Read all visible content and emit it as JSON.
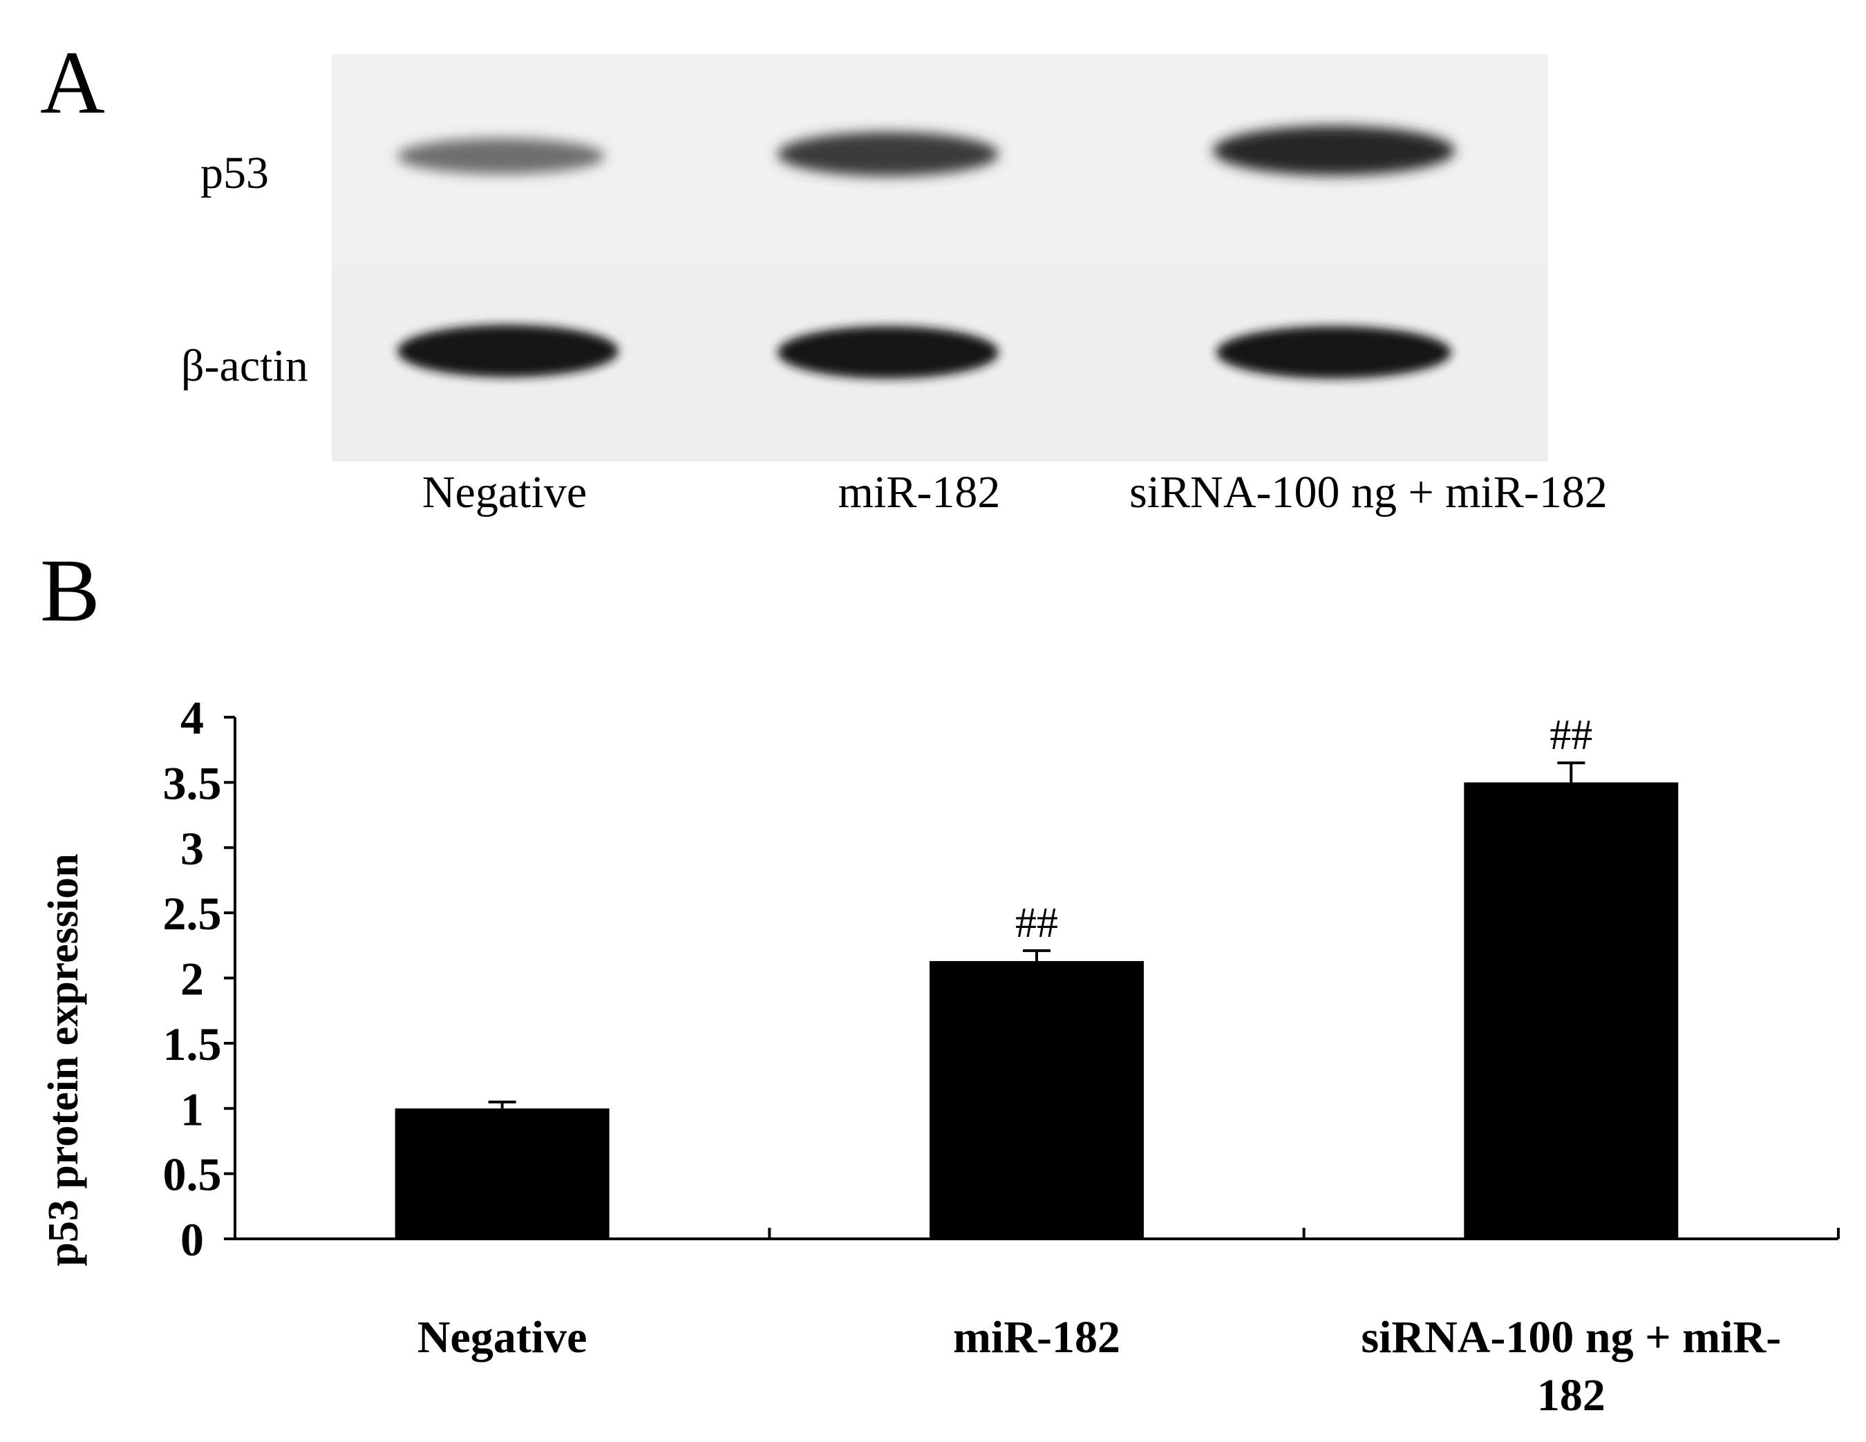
{
  "panel_a": {
    "letter": "A",
    "row_labels": [
      "p53",
      "β-actin"
    ],
    "lane_labels": [
      "Negative",
      "miR-182",
      "siRNA-100 ng + miR-182"
    ]
  },
  "panel_b": {
    "letter": "B"
  },
  "chart_data": {
    "type": "bar",
    "title": "",
    "xlabel": "",
    "ylabel": "p53 protein expression",
    "categories": [
      "Negative",
      "miR-182",
      "siRNA-100 ng + miR-182"
    ],
    "category_label_lines": [
      [
        "Negative"
      ],
      [
        "miR-182"
      ],
      [
        "siRNA-100 ng + miR-",
        "182"
      ]
    ],
    "values": [
      1.0,
      2.13,
      3.5
    ],
    "errors": [
      0.05,
      0.08,
      0.15
    ],
    "significance": [
      "",
      "##",
      "##"
    ],
    "yticks": [
      "0",
      "0.5",
      "1",
      "1.5",
      "2",
      "2.5",
      "3",
      "3.5",
      "4"
    ],
    "ylim": [
      0,
      4
    ],
    "bar_color": "#000000",
    "grid": false
  }
}
